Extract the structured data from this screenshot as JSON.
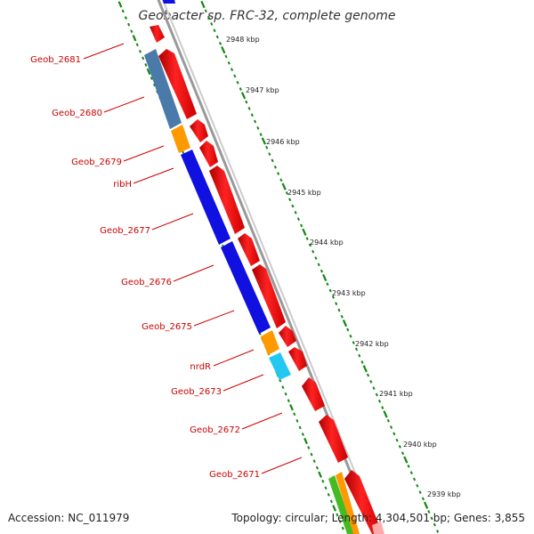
{
  "title": "Geobacter sp. FRC-32, complete genome",
  "footer": {
    "accession": "Accession: NC_011979",
    "topology": "Topology: circular; Length: 4,304,501 bp; Genes: 3,855"
  },
  "kbp_labels": [
    "2948 kbp",
    "2947 kbp",
    "2946 kbp",
    "2945 kbp",
    "2944 kbp",
    "2943 kbp",
    "2942 kbp",
    "2941 kbp",
    "2940 kbp",
    "2939 kbp"
  ],
  "gene_labels": [
    "Geob_2681",
    "Geob_2680",
    "Geob_2679",
    "ribH",
    "Geob_2677",
    "Geob_2676",
    "Geob_2675",
    "nrdR",
    "Geob_2673",
    "Geob_2672",
    "Geob_2671"
  ],
  "colors": {
    "forward_strand": "#ff0000",
    "reverse_blue": "#1010e0",
    "steel_blue": "#4a7aaa",
    "orange": "#ff9900",
    "cyan": "#22c8f0",
    "green": "#44bb22",
    "label_red": "#cc0000",
    "tick_green": "#118811",
    "backbone": "#888888"
  }
}
